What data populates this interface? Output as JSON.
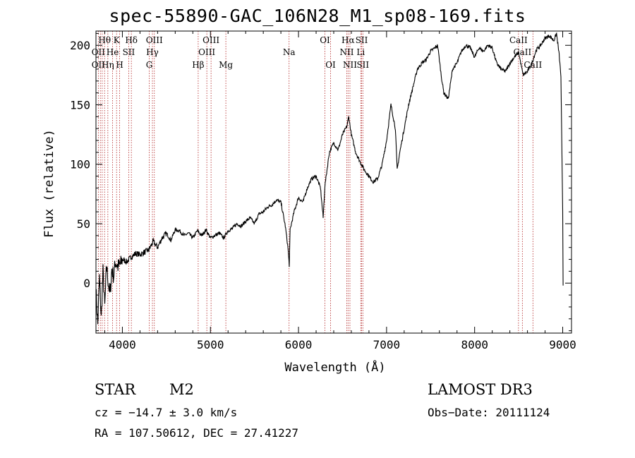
{
  "chart_data": {
    "type": "line",
    "title": "spec-55890-GAC_106N28_M1_sp08-169.fits",
    "xlabel": "Wavelength (Å)",
    "ylabel": "Flux (relative)",
    "xlim": [
      3700,
      9100
    ],
    "ylim": [
      -42,
      212
    ],
    "x_ticks": [
      4000,
      5000,
      6000,
      7000,
      8000,
      9000
    ],
    "y_ticks": [
      0,
      50,
      100,
      150,
      200
    ],
    "series": [
      {
        "name": "flux",
        "x": [
          3700,
          3720,
          3740,
          3760,
          3780,
          3800,
          3820,
          3840,
          3860,
          3880,
          3900,
          3920,
          3950,
          3980,
          4000,
          4050,
          4100,
          4150,
          4200,
          4250,
          4300,
          4350,
          4400,
          4450,
          4500,
          4550,
          4600,
          4650,
          4700,
          4750,
          4800,
          4850,
          4900,
          4950,
          5000,
          5050,
          5100,
          5150,
          5200,
          5250,
          5300,
          5350,
          5400,
          5450,
          5500,
          5550,
          5600,
          5650,
          5700,
          5750,
          5800,
          5850,
          5880,
          5895,
          5905,
          5920,
          5950,
          6000,
          6050,
          6100,
          6150,
          6200,
          6250,
          6280,
          6300,
          6350,
          6400,
          6450,
          6500,
          6550,
          6570,
          6600,
          6650,
          6700,
          6750,
          6800,
          6850,
          6900,
          6950,
          7000,
          7050,
          7100,
          7120,
          7150,
          7200,
          7250,
          7300,
          7350,
          7400,
          7450,
          7500,
          7550,
          7580,
          7620,
          7650,
          7700,
          7750,
          7800,
          7850,
          7900,
          7950,
          8000,
          8050,
          8100,
          8150,
          8200,
          8250,
          8300,
          8350,
          8400,
          8450,
          8500,
          8550,
          8600,
          8650,
          8700,
          8750,
          8800,
          8850,
          8900,
          8930,
          8960,
          8980,
          9000,
          9005
        ],
        "y": [
          -5,
          -35,
          5,
          -30,
          10,
          -20,
          15,
          0,
          -10,
          12,
          5,
          18,
          14,
          16,
          20,
          18,
          22,
          25,
          24,
          26,
          28,
          35,
          30,
          38,
          42,
          36,
          45,
          44,
          40,
          42,
          38,
          44,
          40,
          45,
          38,
          40,
          42,
          38,
          44,
          46,
          50,
          48,
          52,
          55,
          50,
          58,
          60,
          64,
          66,
          70,
          68,
          48,
          30,
          15,
          45,
          50,
          60,
          72,
          68,
          80,
          88,
          90,
          80,
          55,
          82,
          110,
          118,
          112,
          125,
          132,
          140,
          125,
          110,
          102,
          95,
          90,
          85,
          88,
          100,
          120,
          150,
          130,
          95,
          110,
          130,
          150,
          165,
          180,
          185,
          188,
          195,
          198,
          200,
          175,
          160,
          155,
          180,
          185,
          195,
          200,
          198,
          190,
          198,
          195,
          200,
          198,
          185,
          180,
          178,
          185,
          190,
          194,
          175,
          178,
          185,
          196,
          200,
          206,
          208,
          204,
          210,
          192,
          174,
          60,
          -2
        ]
      }
    ],
    "spectral_lines": [
      {
        "label": "Hθ",
        "wl": 3798,
        "row": 1
      },
      {
        "label": "OII",
        "wl": 3727,
        "row": 2
      },
      {
        "label": "OII",
        "wl": 3727,
        "row": 3
      },
      {
        "label": "Hη",
        "wl": 3835,
        "row": 3
      },
      {
        "label": "K",
        "wl": 3934,
        "row": 1
      },
      {
        "label": "He",
        "wl": 3889,
        "row": 2
      },
      {
        "label": "H",
        "wl": 3969,
        "row": 3
      },
      {
        "label": "SII",
        "wl": 4072,
        "row": 2
      },
      {
        "label": "Hδ",
        "wl": 4102,
        "row": 1
      },
      {
        "label": "G",
        "wl": 4305,
        "row": 3
      },
      {
        "label": "OIII",
        "wl": 4363,
        "row": 1
      },
      {
        "label": "Hγ",
        "wl": 4341,
        "row": 2
      },
      {
        "label": "Hβ",
        "wl": 4861,
        "row": 3
      },
      {
        "label": "OIII",
        "wl": 5007,
        "row": 1
      },
      {
        "label": "OIII",
        "wl": 4959,
        "row": 2
      },
      {
        "label": "Mg",
        "wl": 5175,
        "row": 3
      },
      {
        "label": "Na",
        "wl": 5893,
        "row": 2
      },
      {
        "label": "OI",
        "wl": 6300,
        "row": 1
      },
      {
        "label": "OI",
        "wl": 6364,
        "row": 3
      },
      {
        "label": "Hα",
        "wl": 6563,
        "row": 1
      },
      {
        "label": "NII",
        "wl": 6548,
        "row": 2
      },
      {
        "label": "NII",
        "wl": 6584,
        "row": 3
      },
      {
        "label": "SII",
        "wl": 6717,
        "row": 1
      },
      {
        "label": "Li",
        "wl": 6707,
        "row": 2
      },
      {
        "label": "SII",
        "wl": 6731,
        "row": 3
      },
      {
        "label": "CaII",
        "wl": 8498,
        "row": 1
      },
      {
        "label": "CaII",
        "wl": 8542,
        "row": 2
      },
      {
        "label": "CaII",
        "wl": 8662,
        "row": 3
      }
    ],
    "extra_line_wl": [
      3750,
      3771,
      3889,
      3934,
      4102,
      4305,
      4341,
      4861,
      4959,
      5007,
      5175,
      5893,
      6300,
      6364,
      6548,
      6563,
      6584,
      6707,
      6717,
      6731,
      8498,
      8542,
      8662
    ]
  },
  "info": {
    "object_class": "STAR",
    "subclass": "M2",
    "survey": "LAMOST DR3",
    "cz": "cz = −14.7 ± 3.0 km/s",
    "obs_date": "Obs−Date: 20111124",
    "coords": "RA = 107.50612, DEC =  27.41227"
  },
  "colors": {
    "line": "#000000",
    "marker": "#b22222"
  }
}
